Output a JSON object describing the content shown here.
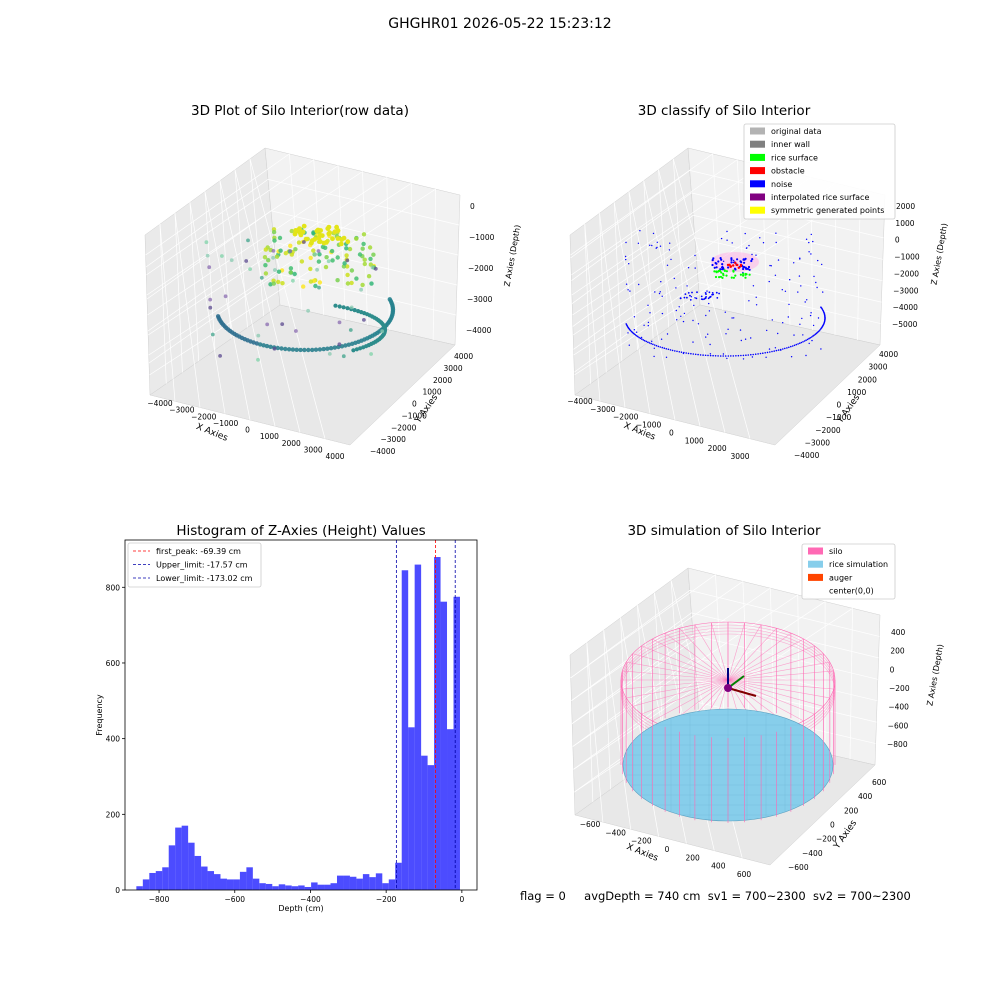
{
  "suptitle": "GHGHR01 2026-05-22 15:23:12",
  "status": {
    "flag": "flag = 0",
    "avg_depth": "avgDepth = 740 cm",
    "sv1": "sv1 = 700~2300",
    "sv2": "sv2 = 700~2300"
  },
  "panels": {
    "raw": {
      "title": "3D Plot of Silo Interior(row data)",
      "xlabel": "X Axies",
      "ylabel": "Y Axies",
      "zlabel": "Z Axies (Depth)",
      "xticks": [
        "−4000",
        "−3000",
        "−2000",
        "−1000",
        "0",
        "1000",
        "2000",
        "3000",
        "4000"
      ],
      "yticks": [
        "−4000",
        "−3000",
        "−2000",
        "−1000",
        "0",
        "1000",
        "2000",
        "3000",
        "4000"
      ],
      "zticks": [
        "0",
        "−1000",
        "−2000",
        "−3000",
        "−4000"
      ]
    },
    "classify": {
      "title": "3D classify of Silo Interior",
      "xlabel": "X Axies",
      "ylabel": "Y Axies",
      "zlabel": "Z Axies (Depth)",
      "xticks": [
        "−4000",
        "−3000",
        "−2000",
        "−1000",
        "0",
        "1000",
        "2000",
        "3000"
      ],
      "yticks": [
        "−4000",
        "−3000",
        "−2000",
        "−1000",
        "0",
        "1000",
        "2000",
        "3000",
        "4000"
      ],
      "zticks": [
        "2000",
        "1000",
        "0",
        "−1000",
        "−2000",
        "−3000",
        "−4000",
        "−5000"
      ],
      "legend": [
        {
          "label": "original data",
          "color": "#b3b3b3"
        },
        {
          "label": "inner wall",
          "color": "#808080"
        },
        {
          "label": "rice surface",
          "color": "#00ff00"
        },
        {
          "label": "obstacle",
          "color": "#ff0000"
        },
        {
          "label": "noise",
          "color": "#0000ff"
        },
        {
          "label": "interpolated rice surface",
          "color": "#800080"
        },
        {
          "label": "symmetric generated points",
          "color": "#ffff00"
        }
      ]
    },
    "simulation": {
      "title": "3D simulation of Silo Interior",
      "xlabel": "X Axies",
      "ylabel": "Y Axies",
      "zlabel": "Z Axies (Depth)",
      "xticks": [
        "−600",
        "−400",
        "−200",
        "0",
        "200",
        "400",
        "600"
      ],
      "yticks": [
        "−600",
        "−400",
        "−200",
        "0",
        "200",
        "400",
        "600"
      ],
      "zticks": [
        "400",
        "200",
        "0",
        "−200",
        "−400",
        "−600",
        "−800"
      ],
      "legend": [
        {
          "label": "silo",
          "color": "#ff69b4"
        },
        {
          "label": "rice simulation",
          "color": "#87ceeb"
        },
        {
          "label": "auger",
          "color": "#ff4500"
        },
        {
          "label": "center(0,0)",
          "color": ""
        }
      ]
    }
  },
  "chart_data": [
    {
      "type": "histogram",
      "title": "Histogram of Z-Axies (Height) Values",
      "xlabel": "Depth (cm)",
      "ylabel": "Frequency",
      "bin_start": -860,
      "bin_width": 17.1,
      "values": [
        10,
        28,
        45,
        50,
        60,
        118,
        165,
        170,
        125,
        90,
        62,
        50,
        42,
        30,
        28,
        28,
        48,
        60,
        30,
        18,
        16,
        10,
        15,
        12,
        10,
        12,
        8,
        20,
        14,
        14,
        18,
        38,
        38,
        35,
        30,
        42,
        34,
        44,
        18,
        28,
        72,
        845,
        430,
        860,
        355,
        330,
        880,
        762,
        425,
        775
      ],
      "xlim": [
        -890,
        40
      ],
      "ylim": [
        0,
        925
      ],
      "xticks": [
        -800,
        -600,
        -400,
        -200,
        0
      ],
      "yticks": [
        0,
        200,
        400,
        600,
        800
      ],
      "bar_color": "#0000ff",
      "vlines": [
        {
          "label": "first_peak: -69.39 cm",
          "x": -69.39,
          "color": "#ff0000"
        },
        {
          "label": "Upper_limit: -17.57 cm",
          "x": -17.57,
          "color": "#0000aa"
        },
        {
          "label": "Lower_limit: -173.02 cm",
          "x": -173.02,
          "color": "#0000aa"
        }
      ],
      "legend": "top-left"
    }
  ]
}
